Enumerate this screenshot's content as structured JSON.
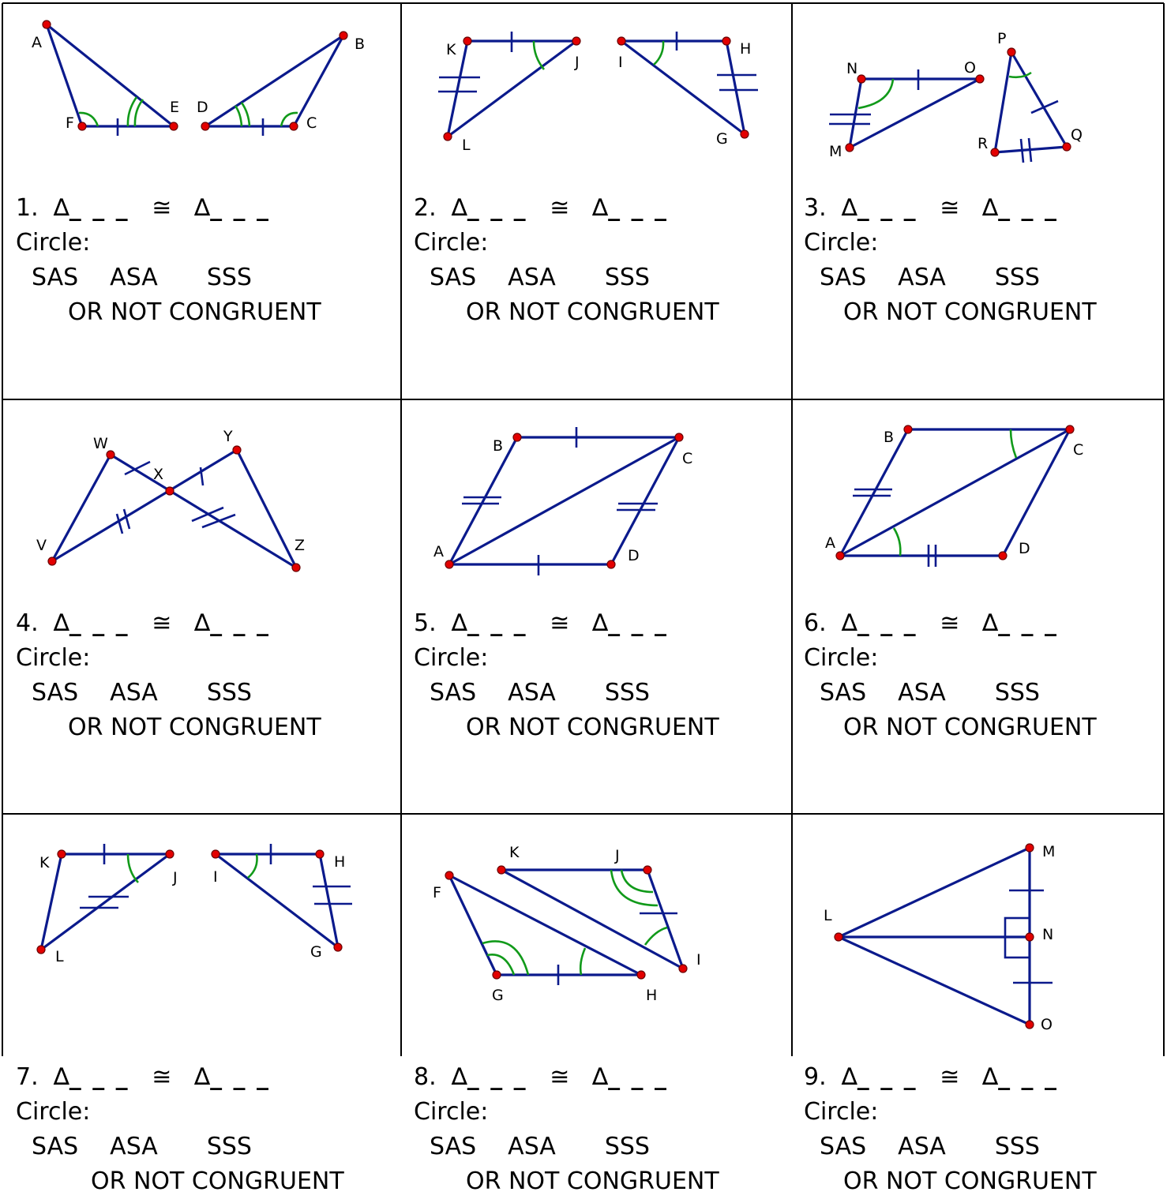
{
  "header_text": "",
  "problems": [
    {
      "number": "1.",
      "labels": [
        "A",
        "B",
        "C",
        "D",
        "E",
        "F"
      ]
    },
    {
      "number": "2.",
      "labels": [
        "K",
        "J",
        "L",
        "I",
        "H",
        "G"
      ]
    },
    {
      "number": "3.",
      "labels": [
        "N",
        "O",
        "M",
        "P",
        "Q",
        "R"
      ]
    },
    {
      "number": "4.",
      "labels": [
        "W",
        "X",
        "Y",
        "V",
        "Z"
      ]
    },
    {
      "number": "5.",
      "labels": [
        "B",
        "C",
        "A",
        "D"
      ]
    },
    {
      "number": "6.",
      "labels": [
        "B",
        "C",
        "A",
        "D"
      ]
    },
    {
      "number": "7.",
      "labels": [
        "K",
        "J",
        "L",
        "I",
        "H",
        "G"
      ]
    },
    {
      "number": "8.",
      "labels": [
        "K",
        "J",
        "F",
        "G",
        "H",
        "I"
      ]
    },
    {
      "number": "9.",
      "labels": [
        "M",
        "L",
        "N",
        "O"
      ]
    }
  ],
  "statement": {
    "triangle": "∆",
    "blanks": "_ _ _",
    "congruent": "≅"
  },
  "circle_label": "Circle:",
  "options": [
    "SAS",
    "ASA",
    "SSS",
    "OR NOT CONGRUENT"
  ]
}
